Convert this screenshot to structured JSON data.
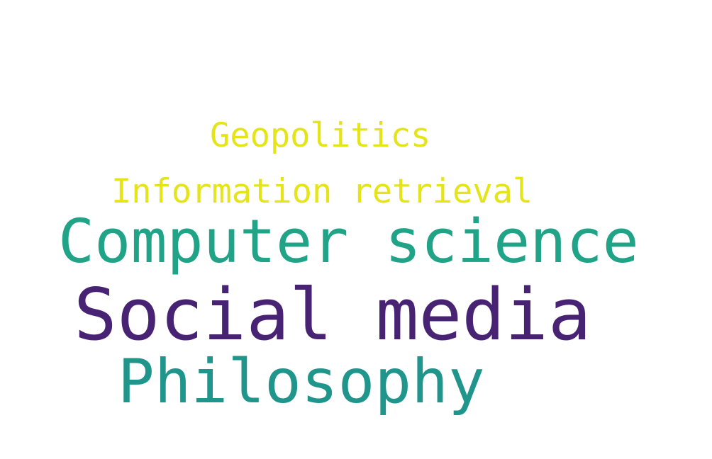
{
  "words": [
    {
      "id": "geopolitics",
      "text": "Geopolitics",
      "color": "#e5e419"
    },
    {
      "id": "information_retrieval",
      "text": "Information retrieval",
      "color": "#e5e419"
    },
    {
      "id": "computer_science",
      "text": "Computer science",
      "color": "#20a386"
    },
    {
      "id": "social_media",
      "text": "Social media",
      "color": "#482374"
    },
    {
      "id": "philosophy",
      "text": "Philosophy",
      "color": "#1f958b"
    }
  ]
}
